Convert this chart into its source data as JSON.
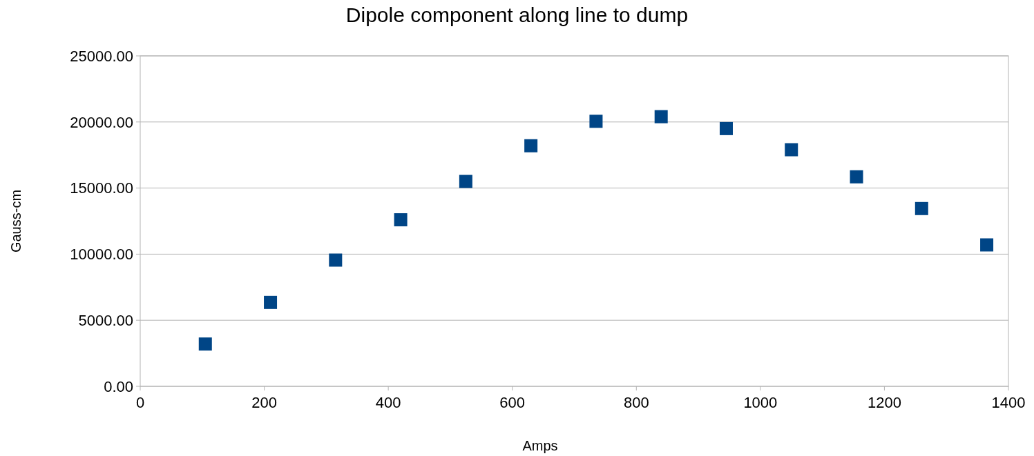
{
  "chart_data": {
    "type": "scatter",
    "title": "Dipole component along line to dump",
    "xlabel": "Amps",
    "ylabel": "Gauss-cm",
    "x": [
      105,
      210,
      315,
      420,
      525,
      630,
      735,
      840,
      945,
      1050,
      1155,
      1260,
      1365
    ],
    "series": [
      {
        "color": "#004586",
        "values": [
          3200,
          6350,
          9550,
          12600,
          15500,
          18200,
          20050,
          20400,
          19500,
          17900,
          15850,
          13450,
          10700
        ]
      }
    ],
    "xlim": [
      0,
      1400
    ],
    "xticks": [
      0,
      200,
      400,
      600,
      800,
      1000,
      1200,
      1400
    ],
    "ylim": [
      0,
      25000
    ],
    "yticks": [
      {
        "value": 0,
        "label": "0.00"
      },
      {
        "value": 5000,
        "label": "5000.00"
      },
      {
        "value": 10000,
        "label": "10000.00"
      },
      {
        "value": 15000,
        "label": "15000.00"
      },
      {
        "value": 20000,
        "label": "20000.00"
      },
      {
        "value": 25000,
        "label": "25000.00"
      }
    ],
    "grid": "y",
    "marker": "square"
  }
}
